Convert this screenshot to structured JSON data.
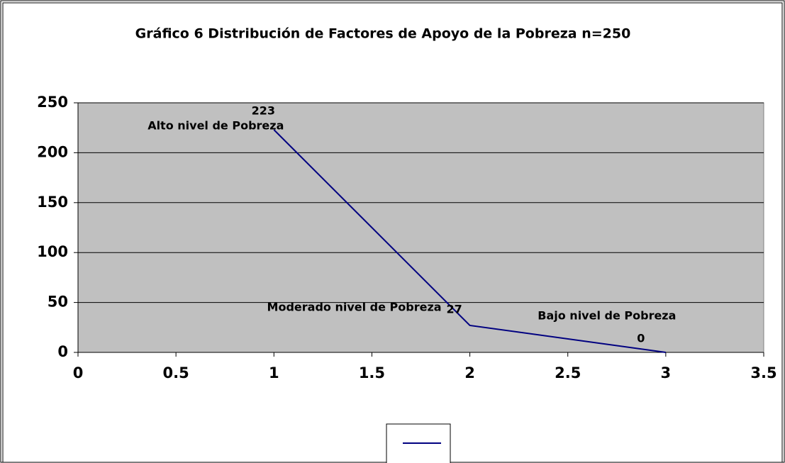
{
  "chart_data": {
    "type": "line",
    "title": "Gráfico 6 Distribución de Factores de Apoyo de la Pobreza n=250",
    "x": [
      1,
      2,
      3
    ],
    "values": [
      223,
      27,
      0
    ],
    "point_labels": [
      "Alto nivel de Pobreza",
      "Moderado nivel de Pobreza",
      "Bajo nivel de Pobreza"
    ],
    "color": "#000080",
    "xlim": [
      0,
      3.5
    ],
    "xticks": [
      0,
      0.5,
      1,
      1.5,
      2,
      2.5,
      3,
      3.5
    ],
    "ylim": [
      0,
      250
    ],
    "yticks": [
      0,
      50,
      100,
      150,
      200,
      250
    ],
    "grid": true,
    "legend": "bottom"
  }
}
